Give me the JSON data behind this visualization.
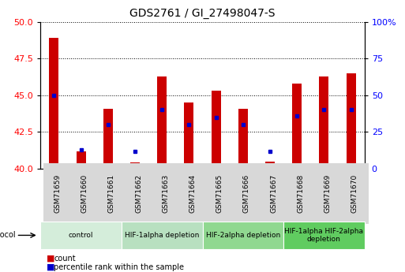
{
  "title": "GDS2761 / GI_27498047-S",
  "samples": [
    "GSM71659",
    "GSM71660",
    "GSM71661",
    "GSM71662",
    "GSM71663",
    "GSM71664",
    "GSM71665",
    "GSM71666",
    "GSM71667",
    "GSM71668",
    "GSM71669",
    "GSM71670"
  ],
  "bar_heights": [
    48.9,
    41.2,
    44.1,
    40.4,
    46.3,
    44.5,
    45.3,
    44.1,
    40.5,
    45.8,
    46.3,
    46.5
  ],
  "blue_y": [
    45.0,
    41.3,
    43.0,
    41.2,
    44.0,
    43.0,
    43.5,
    43.0,
    41.2,
    43.6,
    44.0,
    44.0
  ],
  "bar_bottom": 40.0,
  "ylim_left": [
    40.0,
    50.0
  ],
  "ylim_right": [
    0,
    100
  ],
  "yticks_left": [
    40,
    42.5,
    45,
    47.5,
    50
  ],
  "yticks_right": [
    0,
    25,
    50,
    75,
    100
  ],
  "bar_color": "#cc0000",
  "blue_color": "#0000cc",
  "bg_color": "#ffffff",
  "protocols": [
    {
      "label": "control",
      "start": 0,
      "end": 3,
      "color": "#d4edda"
    },
    {
      "label": "HIF-1alpha depletion",
      "start": 3,
      "end": 6,
      "color": "#b8e0c0"
    },
    {
      "label": "HIF-2alpha depletion",
      "start": 6,
      "end": 9,
      "color": "#90d890"
    },
    {
      "label": "HIF-1alpha HIF-2alpha\ndepletion",
      "start": 9,
      "end": 12,
      "color": "#60cc60"
    }
  ],
  "legend_count_color": "#cc0000",
  "legend_pct_color": "#0000cc"
}
